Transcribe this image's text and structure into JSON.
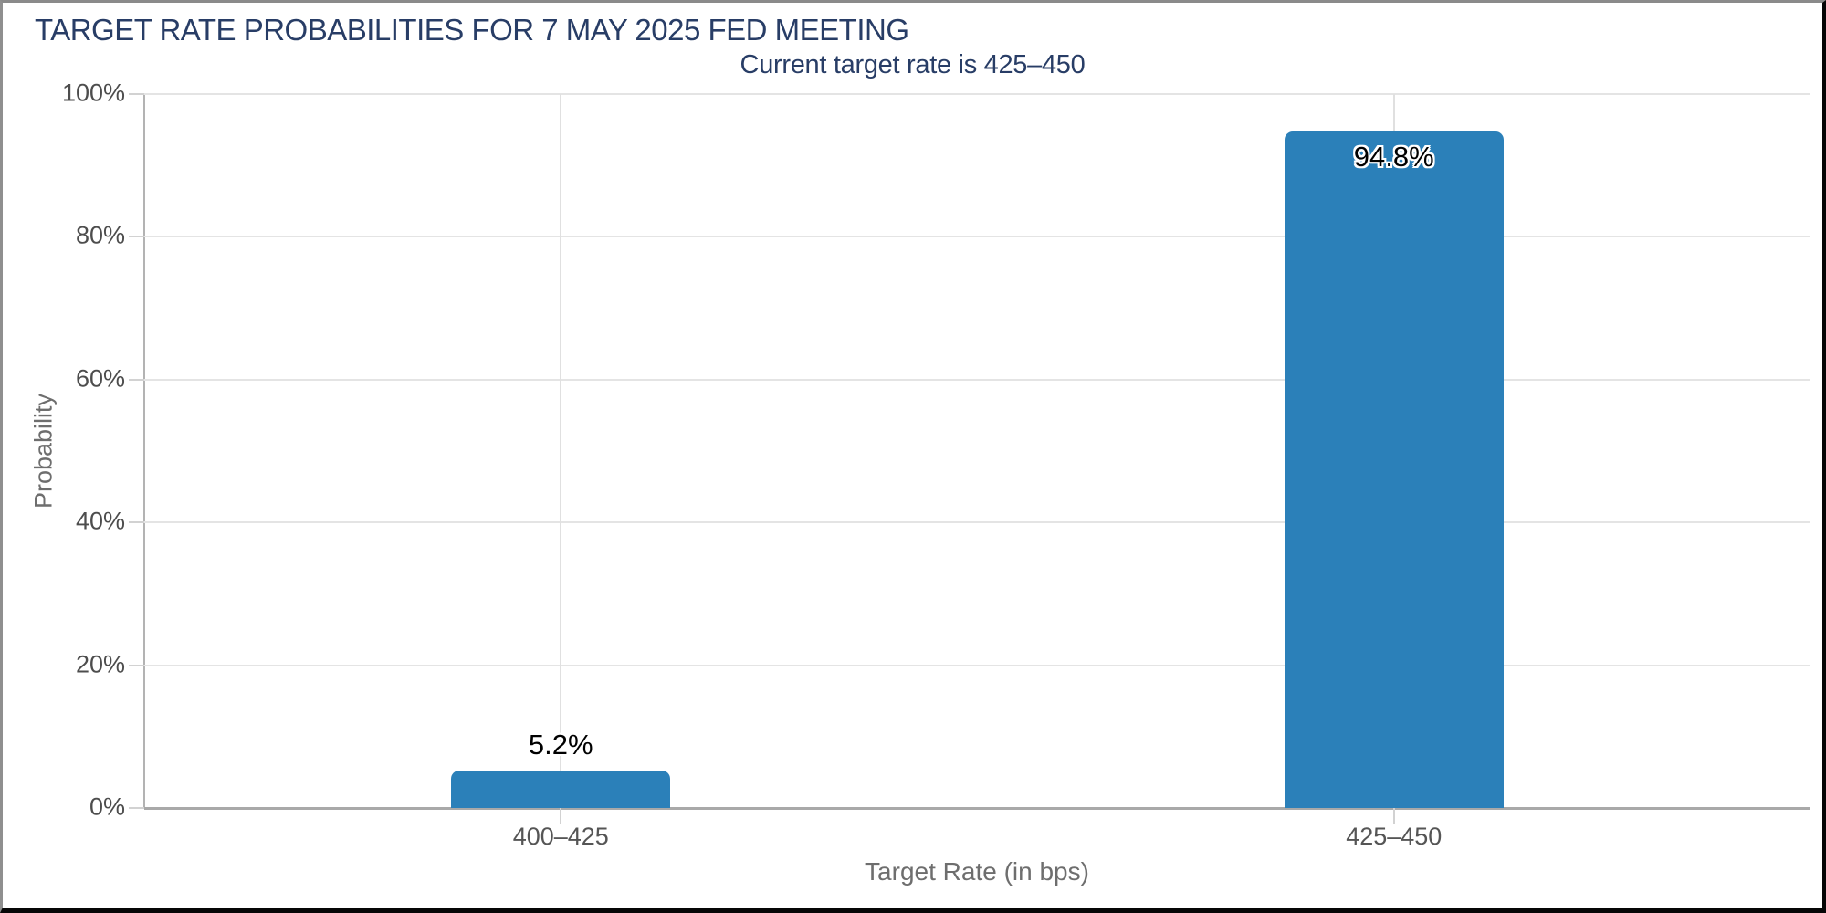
{
  "colors": {
    "bar": "#2b80b9",
    "heading_text": "#283d66",
    "ytick_text": "#4d4d4d",
    "xtick_text": "#555555",
    "axis_title_text": "#6e6e6e",
    "gridline": "#e4e4e4",
    "axis_line": "#a9a9a9"
  },
  "chart_data": {
    "type": "bar",
    "title": "TARGET RATE PROBABILITIES FOR 7 MAY 2025 FED MEETING",
    "subtitle": "Current target rate is 425–450",
    "categories": [
      "400–425",
      "425–450"
    ],
    "values": [
      5.2,
      94.8
    ],
    "value_labels": [
      "5.2%",
      "94.8%"
    ],
    "xlabel": "Target Rate (in bps)",
    "ylabel": "Probability",
    "ylim": [
      0,
      100
    ],
    "ytick_values": [
      0,
      20,
      40,
      60,
      80,
      100
    ],
    "ytick_labels": [
      "0%",
      "20%",
      "40%",
      "60%",
      "80%",
      "100%"
    ],
    "grid": true,
    "legend": "none",
    "bar_color": "#2b80b9"
  }
}
